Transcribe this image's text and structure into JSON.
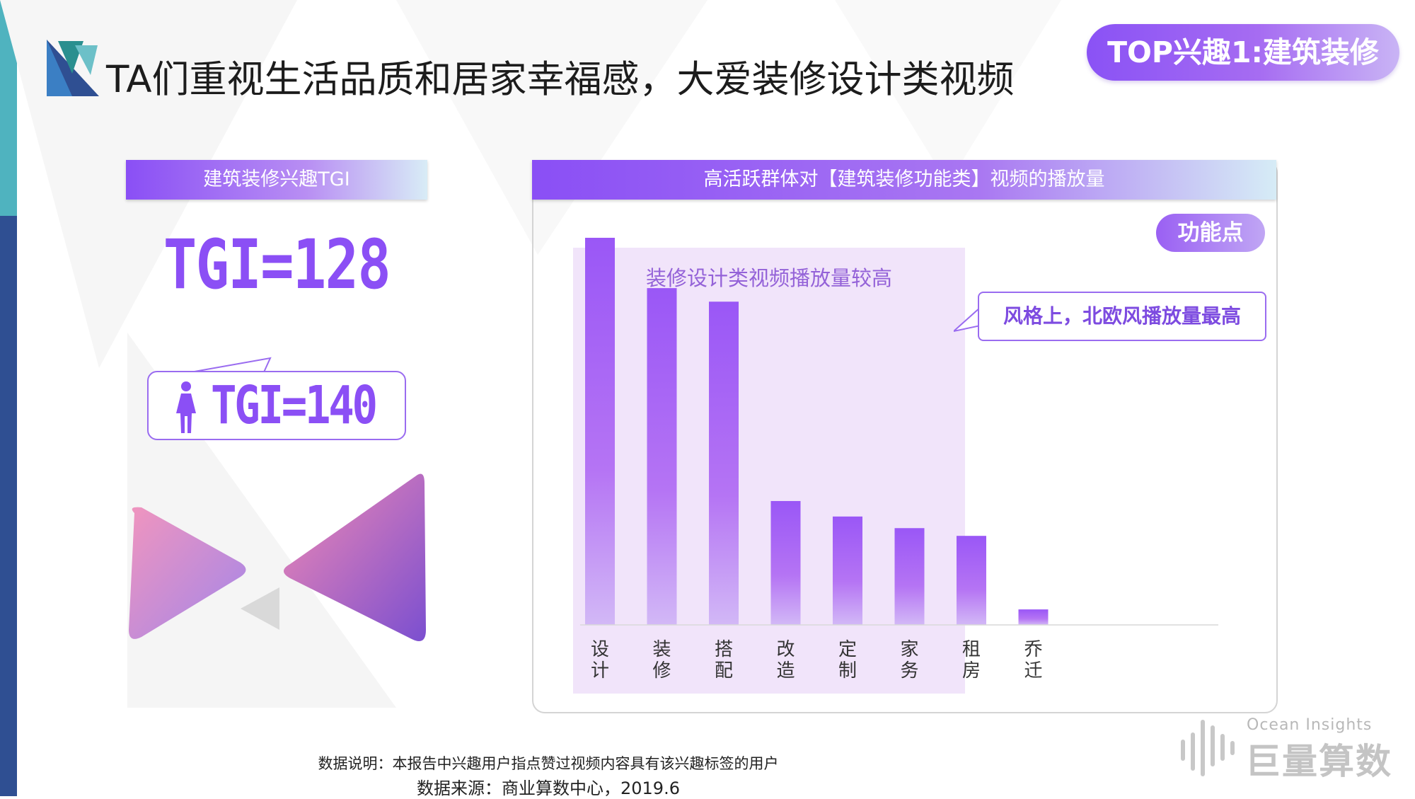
{
  "header": {
    "title": "TA们重视生活品质和居家幸福感，大爱装修设计类视频",
    "badge": "TOP兴趣1:建筑装修"
  },
  "left_panel": {
    "header": "建筑装修兴趣TGI",
    "tgi_overall": "TGI=128",
    "tgi_female": "TGI=140",
    "female_icon": "female-person-icon"
  },
  "chart_panel": {
    "header": "高活跃群体对【建筑装修功能类】视频的播放量",
    "feature_pill": "功能点",
    "highlight_label": "装修设计类视频播放量较高",
    "callout": "风格上，北欧风播放量最高"
  },
  "chart_data": {
    "type": "bar",
    "title": "高活跃群体对【建筑装修功能类】视频的播放量",
    "categories": [
      "设计",
      "装修",
      "搭配",
      "改造",
      "定制",
      "家务",
      "租房",
      "乔迁"
    ],
    "values": [
      100,
      87,
      83.5,
      32,
      28,
      25,
      23,
      4
    ],
    "ylim": [
      0,
      100
    ],
    "grid": false,
    "highlighted_categories": [
      "设计",
      "装修",
      "搭配",
      "改造",
      "定制"
    ],
    "bar_gradient": [
      "#9a57f6",
      "#c9a2f7"
    ]
  },
  "footer": {
    "note": "数据说明：本报告中兴趣用户指点赞过视频内容具有该兴趣标签的用户",
    "source": "数据来源：商业算数中心，2019.6",
    "brand_en": "Ocean Insights",
    "brand_cn": "巨量算数"
  },
  "colors": {
    "accent": "#8b4ff5",
    "strip_top": "#4fb3bf",
    "strip_bottom": "#2f4f92"
  }
}
